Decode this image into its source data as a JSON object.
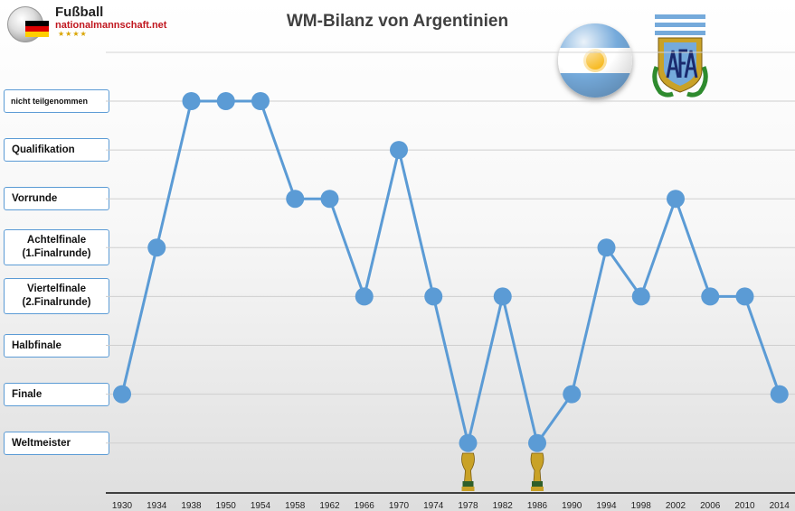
{
  "logo": {
    "title": "Fußball",
    "url": "nationalmannschaft.net",
    "stars": "★★★★"
  },
  "chart_data": {
    "type": "line",
    "title": "WM-Bilanz von Argentinien",
    "categories": [
      "nicht teilgenommen",
      "Qualifikation",
      "Vorrunde",
      "Achtelfinale (1.Finalrunde)",
      "Viertelfinale (2.Finalrunde)",
      "Halbfinale",
      "Finale",
      "Weltmeister"
    ],
    "category_labels": [
      {
        "lines": [
          "nicht teilgenommen"
        ]
      },
      {
        "lines": [
          "Qualifikation"
        ]
      },
      {
        "lines": [
          "Vorrunde"
        ]
      },
      {
        "lines": [
          "Achtelfinale",
          "(1.Finalrunde)"
        ]
      },
      {
        "lines": [
          "Viertelfinale",
          "(2.Finalrunde)"
        ]
      },
      {
        "lines": [
          "Halbfinale"
        ]
      },
      {
        "lines": [
          "Finale"
        ]
      },
      {
        "lines": [
          "Weltmeister"
        ]
      }
    ],
    "x": [
      "1930",
      "1934",
      "1938",
      "1950",
      "1954",
      "1958",
      "1962",
      "1966",
      "1970",
      "1974",
      "1978",
      "1982",
      "1986",
      "1990",
      "1994",
      "1998",
      "2002",
      "2006",
      "2010",
      "2014"
    ],
    "values": [
      "Finale",
      "Achtelfinale (1.Finalrunde)",
      "nicht teilgenommen",
      "nicht teilgenommen",
      "nicht teilgenommen",
      "Vorrunde",
      "Vorrunde",
      "Viertelfinale (2.Finalrunde)",
      "Qualifikation",
      "Viertelfinale (2.Finalrunde)",
      "Weltmeister",
      "Viertelfinale (2.Finalrunde)",
      "Weltmeister",
      "Finale",
      "Achtelfinale (1.Finalrunde)",
      "Viertelfinale (2.Finalrunde)",
      "Vorrunde",
      "Viertelfinale (2.Finalrunde)",
      "Viertelfinale (2.Finalrunde)",
      "Finale"
    ],
    "trophy_years": [
      "1978",
      "1986"
    ],
    "line_color": "#5b9bd5",
    "marker_color": "#5b9bd5",
    "grid": true,
    "legend": "none"
  }
}
